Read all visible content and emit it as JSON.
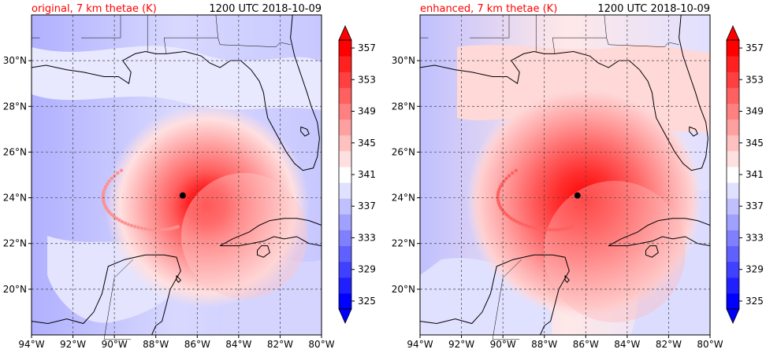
{
  "panels": [
    {
      "title": "original, 7 km thetae (K)",
      "time": "1200 UTC 2018-10-09",
      "center": {
        "lon": -86.7,
        "lat": 24.1
      }
    },
    {
      "title": "enhanced, 7 km thetae (K)",
      "time": "1200 UTC 2018-10-09",
      "center": {
        "lon": -86.4,
        "lat": 24.1
      }
    }
  ],
  "map": {
    "lon_range": [
      -94,
      -80
    ],
    "lat_range": [
      18,
      32
    ],
    "lon_ticks": [
      -94,
      -92,
      -90,
      -88,
      -86,
      -84,
      -82,
      -80
    ],
    "lon_tick_labels": [
      "94°W",
      "92°W",
      "90°W",
      "88°W",
      "86°W",
      "84°W",
      "82°W",
      "80°W"
    ],
    "lat_ticks": [
      20,
      22,
      24,
      26,
      28,
      30
    ],
    "lat_tick_labels": [
      "20°N",
      "22°N",
      "24°N",
      "26°N",
      "28°N",
      "30°N"
    ],
    "grid": true
  },
  "colorbar": {
    "min": 325,
    "max": 359,
    "levels": [
      325,
      327,
      329,
      331,
      333,
      335,
      337,
      339,
      341,
      343,
      345,
      347,
      349,
      351,
      353,
      355,
      357,
      359
    ],
    "tick_values": [
      325,
      329,
      333,
      337,
      341,
      345,
      349,
      353,
      357
    ],
    "tick_labels": [
      "325",
      "329",
      "333",
      "337",
      "341",
      "345",
      "349",
      "353",
      "357"
    ],
    "colors": [
      "#0000ff",
      "#2020ff",
      "#4040ff",
      "#6060ff",
      "#8080ff",
      "#a0a0ff",
      "#c0c0ff",
      "#e0e0ff",
      "#ffffff",
      "#ffe0e0",
      "#ffc0c0",
      "#ffa0a0",
      "#ff8080",
      "#ff6060",
      "#ff4040",
      "#ff2020",
      "#ff0000"
    ],
    "extend": "both"
  },
  "colors": {
    "title": "#ff0000",
    "text": "#000000",
    "coast": "#000000",
    "grid": "#444444"
  }
}
